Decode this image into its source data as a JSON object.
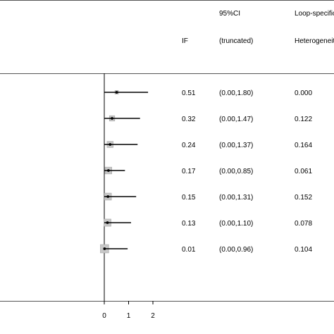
{
  "header": {
    "ci_line1": "95%CI",
    "ci_line2": "(truncated)",
    "if_label": "IF",
    "het_line1": "Loop-specific",
    "het_line2": "Heterogeneity"
  },
  "chart_data": {
    "type": "forest",
    "x_ticks": [
      0,
      1,
      2
    ],
    "xlim": [
      0,
      3.7
    ],
    "rows": [
      {
        "if": 0.51,
        "if_text": "0.51",
        "ci_low": 0.0,
        "ci_high": 1.8,
        "ci_text": "(0.00,1.80)",
        "het_text": "0.000"
      },
      {
        "if": 0.32,
        "if_text": "0.32",
        "ci_low": 0.0,
        "ci_high": 1.47,
        "ci_text": "(0.00,1.47)",
        "het_text": "0.122"
      },
      {
        "if": 0.24,
        "if_text": "0.24",
        "ci_low": 0.0,
        "ci_high": 1.37,
        "ci_text": "(0.00,1.37)",
        "het_text": "0.164"
      },
      {
        "if": 0.17,
        "if_text": "0.17",
        "ci_low": 0.0,
        "ci_high": 0.85,
        "ci_text": "(0.00,0.85)",
        "het_text": "0.061"
      },
      {
        "if": 0.15,
        "if_text": "0.15",
        "ci_low": 0.0,
        "ci_high": 1.31,
        "ci_text": "(0.00,1.31)",
        "het_text": "0.152"
      },
      {
        "if": 0.13,
        "if_text": "0.13",
        "ci_low": 0.0,
        "ci_high": 1.1,
        "ci_text": "(0.00,1.10)",
        "het_text": "0.078"
      },
      {
        "if": 0.01,
        "if_text": "0.01",
        "ci_low": 0.0,
        "ci_high": 0.96,
        "ci_text": "(0.00,0.96)",
        "het_text": "0.104"
      }
    ],
    "colors": {
      "line": "#000000",
      "box_fill": "#c8c8c8",
      "box_stroke": "#a8a8a8",
      "ref_line": "#000000"
    }
  }
}
